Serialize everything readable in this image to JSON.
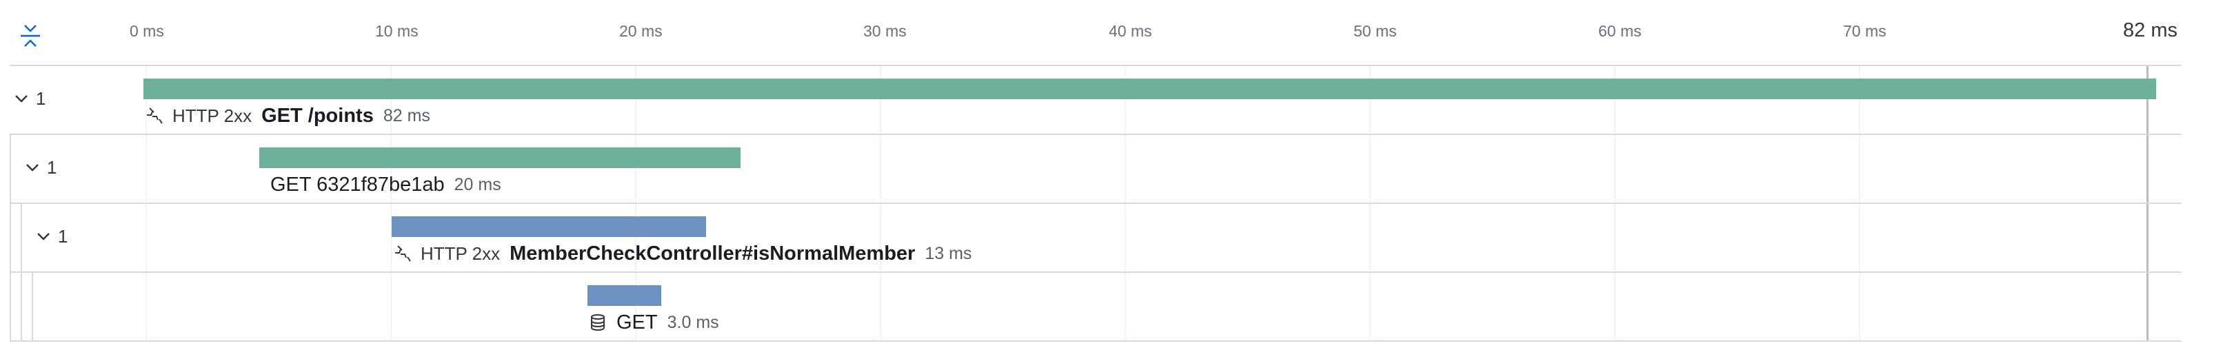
{
  "timeline": {
    "ticks": [
      "0 ms",
      "10 ms",
      "20 ms",
      "30 ms",
      "40 ms",
      "50 ms",
      "60 ms",
      "70 ms"
    ],
    "end_label": "82 ms",
    "rows": [
      {
        "count": "1",
        "status": "HTTP 2xx",
        "name": "GET /points",
        "duration": "82 ms",
        "color": "#6db298",
        "icon": "http-transaction-icon"
      },
      {
        "count": "1",
        "status": "",
        "name": "GET 6321f87be1ab",
        "duration": "20 ms",
        "color": "#6db298",
        "icon": ""
      },
      {
        "count": "1",
        "status": "HTTP 2xx",
        "name": "MemberCheckController#isNormalMember",
        "duration": "13 ms",
        "color": "#6d92bf",
        "icon": "http-transaction-icon"
      },
      {
        "count": "",
        "status": "",
        "name": "GET",
        "duration": "3.0 ms",
        "color": "#6d92bf",
        "icon": "database-icon"
      }
    ]
  }
}
